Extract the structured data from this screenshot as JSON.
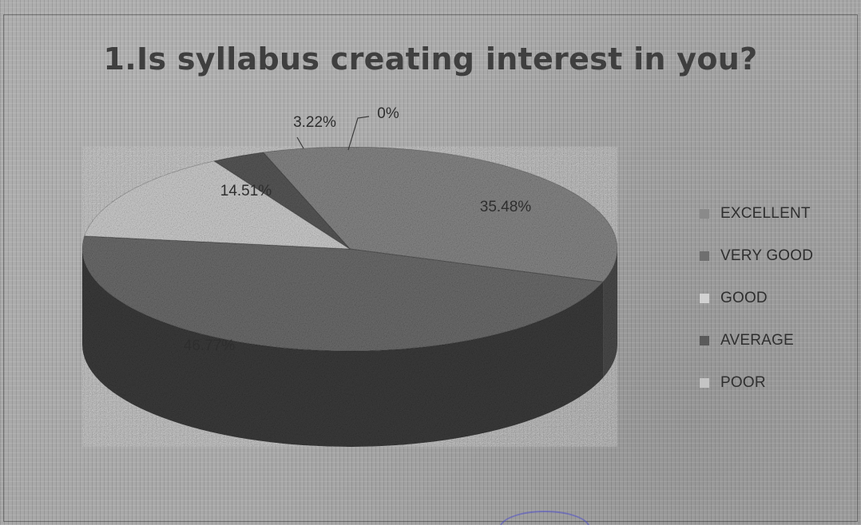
{
  "chart_data": {
    "type": "pie",
    "title": "1.Is syllabus creating interest in you?",
    "slices": [
      {
        "name": "EXCELLENT",
        "value": 35.48,
        "label": "35.48%",
        "color": "#8a8a8a"
      },
      {
        "name": "VERY GOOD",
        "value": 46.77,
        "label": "46.77%",
        "color": "#6f6f6f"
      },
      {
        "name": "GOOD",
        "value": 14.51,
        "label": "14.51%",
        "color": "#d2d2d2"
      },
      {
        "name": "AVERAGE",
        "value": 3.22,
        "label": "3.22%",
        "color": "#5a5a5a"
      },
      {
        "name": "POOR",
        "value": 0,
        "label": "0%",
        "color": "#c4c4c4"
      }
    ],
    "legend_position": "right"
  }
}
